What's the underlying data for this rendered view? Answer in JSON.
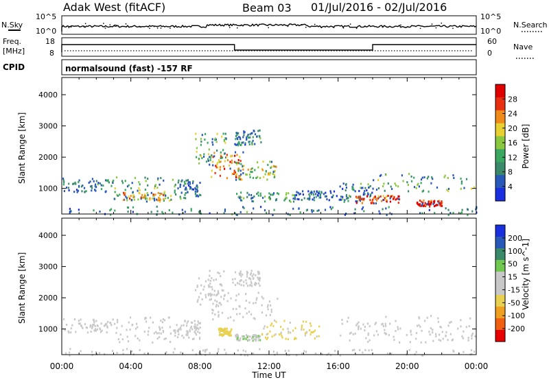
{
  "header": {
    "station": "Adak West (fitACF)",
    "beam": "Beam 03",
    "date_range": "01/Jul/2016 - 02/Jul/2016"
  },
  "top_panels": {
    "nsky_label": "N.Sky",
    "nsearch_label": "N.Search",
    "freq_label_1": "Freq.",
    "freq_label_2": "[MHz]",
    "nave_label": "Nave",
    "cpid_label": "CPID",
    "cpid_text": "normalsound (fast) -157 RF",
    "noise_ticks_left": [
      "10^5",
      "10^0"
    ],
    "noise_ticks_right": [
      "10^5",
      "10^0"
    ],
    "freq_ticks": [
      "18",
      "8"
    ],
    "nave_ticks": [
      "60",
      "0"
    ]
  },
  "time_ticks": [
    "00:00",
    "04:00",
    "08:00",
    "12:00",
    "16:00",
    "20:00",
    "00:00"
  ],
  "xlabel": "Time UT",
  "colors": {
    "power": [
      "#1a30e0",
      "#2858b8",
      "#3a8a6a",
      "#3aa860",
      "#8ac840",
      "#e8d030",
      "#f08a18",
      "#e83010",
      "#e00000"
    ],
    "velocity": [
      "#e80000",
      "#f06010",
      "#f0a020",
      "#e8d050",
      "#c8c8c8",
      "#c8c8c8",
      "#70c850",
      "#3a8a6a",
      "#2858b8",
      "#1a30e0"
    ]
  },
  "chart_data": [
    {
      "type": "heatmap",
      "title": "Power",
      "ylabel": "Slant Range [km]",
      "colorbar_label": "Power [dB]",
      "colorbar_ticks": [
        "28",
        "24",
        "20",
        "16",
        "12",
        "8",
        "4"
      ],
      "y_ticks": [
        "4000",
        "3000",
        "2000",
        "1000"
      ],
      "xlim": [
        0,
        24
      ],
      "ylim": [
        180,
        4550
      ],
      "zlim": [
        0,
        30
      ],
      "regions": [
        {
          "t0": 0.0,
          "t1": 3.0,
          "r0": 900,
          "r1": 1350,
          "z": 8
        },
        {
          "t0": 3.0,
          "t1": 6.5,
          "r0": 600,
          "r1": 1400,
          "z": 14
        },
        {
          "t0": 3.5,
          "t1": 6.0,
          "r0": 650,
          "r1": 900,
          "z": 20
        },
        {
          "t0": 6.5,
          "t1": 8.0,
          "r0": 700,
          "r1": 1300,
          "z": 8
        },
        {
          "t0": 7.7,
          "t1": 9.5,
          "r0": 1800,
          "r1": 2800,
          "z": 14
        },
        {
          "t0": 8.5,
          "t1": 10.5,
          "r0": 1300,
          "r1": 2200,
          "z": 22
        },
        {
          "t0": 10.0,
          "t1": 12.5,
          "r0": 1300,
          "r1": 1900,
          "z": 16
        },
        {
          "t0": 9.8,
          "t1": 11.5,
          "r0": 2400,
          "r1": 2900,
          "z": 8
        },
        {
          "t0": 10.0,
          "t1": 13.5,
          "r0": 600,
          "r1": 900,
          "z": 10
        },
        {
          "t0": 13.5,
          "t1": 16.0,
          "r0": 650,
          "r1": 950,
          "z": 6
        },
        {
          "t0": 16.0,
          "t1": 18.0,
          "r0": 600,
          "r1": 1200,
          "z": 8
        },
        {
          "t0": 18.0,
          "t1": 24.0,
          "r0": 900,
          "r1": 1500,
          "z": 12
        },
        {
          "t0": 17.0,
          "t1": 19.5,
          "r0": 550,
          "r1": 800,
          "z": 24
        },
        {
          "t0": 20.5,
          "t1": 22.0,
          "r0": 450,
          "r1": 650,
          "z": 28
        },
        {
          "t0": 0.0,
          "t1": 24.0,
          "r0": 180,
          "r1": 450,
          "z": 8
        }
      ]
    },
    {
      "type": "heatmap",
      "title": "Velocity",
      "ylabel": "Slant Range [km]",
      "colorbar_label": "Velocity [m s^-1]",
      "colorbar_ticks": [
        "200",
        "100",
        "50",
        "15",
        "-15",
        "-50",
        "-100",
        "-200"
      ],
      "y_ticks": [
        "4000",
        "3000",
        "2000",
        "1000"
      ],
      "xlim": [
        0,
        24
      ],
      "ylim": [
        180,
        4550
      ],
      "zlim": [
        -250,
        250
      ],
      "regions": [
        {
          "t0": 0.0,
          "t1": 3.0,
          "r0": 900,
          "r1": 1350,
          "z": 0
        },
        {
          "t0": 3.0,
          "t1": 6.5,
          "r0": 600,
          "r1": 1400,
          "z": 0
        },
        {
          "t0": 6.5,
          "t1": 8.0,
          "r0": 700,
          "r1": 1300,
          "z": 0
        },
        {
          "t0": 7.7,
          "t1": 9.5,
          "r0": 1800,
          "r1": 2900,
          "z": 0
        },
        {
          "t0": 8.5,
          "t1": 12.5,
          "r0": 1300,
          "r1": 2200,
          "z": 0
        },
        {
          "t0": 9.8,
          "t1": 11.5,
          "r0": 2400,
          "r1": 2900,
          "z": 0
        },
        {
          "t0": 9.0,
          "t1": 9.8,
          "r0": 800,
          "r1": 1050,
          "z": -80
        },
        {
          "t0": 11.5,
          "t1": 15.0,
          "r0": 700,
          "r1": 1300,
          "z": -60
        },
        {
          "t0": 10.0,
          "t1": 11.5,
          "r0": 650,
          "r1": 850,
          "z": 40
        },
        {
          "t0": 16.0,
          "t1": 24.0,
          "r0": 600,
          "r1": 1450,
          "z": 0
        },
        {
          "t0": 0.0,
          "t1": 24.0,
          "r0": 180,
          "r1": 400,
          "z": 30
        }
      ]
    }
  ]
}
